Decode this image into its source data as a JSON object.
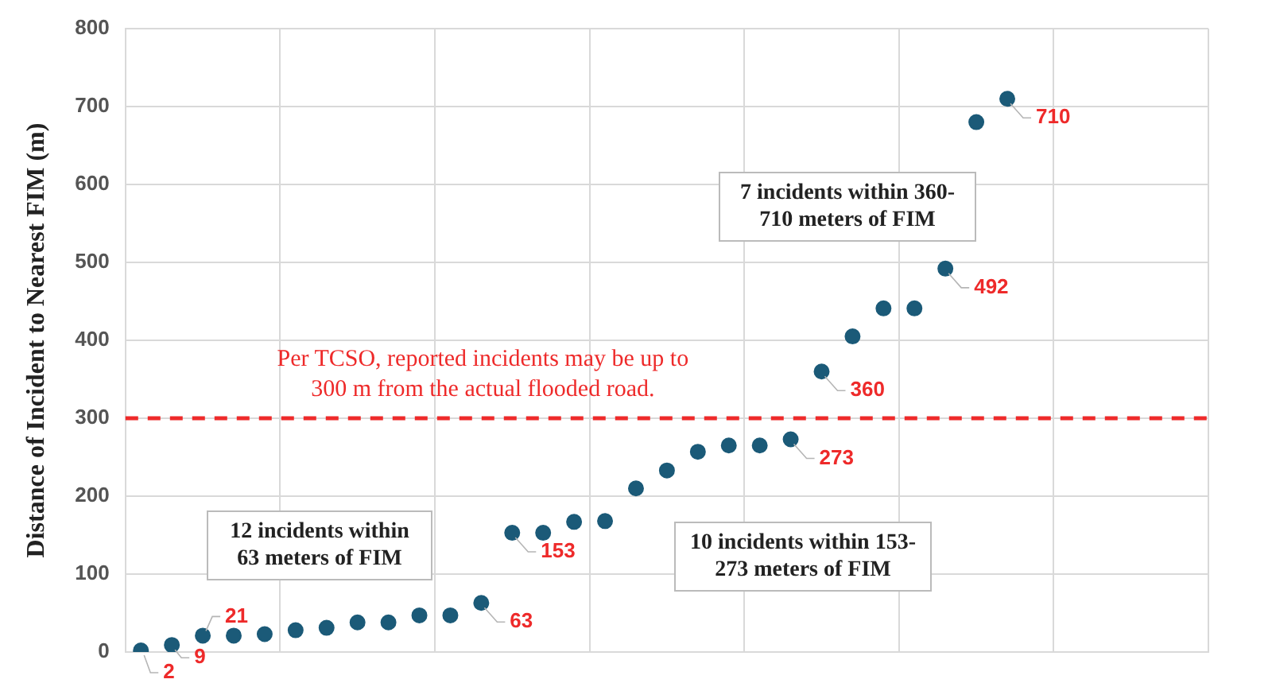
{
  "chart_data": {
    "type": "scatter",
    "ylabel": "Distance of Incident to Nearest FIM (m)",
    "categories": [
      null,
      null,
      null,
      null,
      null,
      null,
      null,
      null,
      null,
      null,
      null,
      null,
      null,
      null,
      null,
      null,
      null,
      null,
      null,
      null,
      null,
      null,
      null,
      null,
      null,
      null,
      null,
      null,
      null,
      null,
      null,
      null,
      null,
      null,
      null
    ],
    "series": [
      {
        "color": "#1b5a78",
        "values": [
          2,
          9,
          21,
          21,
          23,
          28,
          31,
          38,
          38,
          47,
          47,
          63,
          153,
          153,
          167,
          168,
          210,
          233,
          257,
          265,
          265,
          273,
          360,
          405,
          441,
          441,
          492,
          680,
          710,
          null,
          null,
          null,
          null,
          null,
          null
        ],
        "value_labels": [
          "2",
          "9",
          "21",
          null,
          null,
          null,
          null,
          null,
          null,
          null,
          null,
          "63",
          "153",
          null,
          null,
          null,
          null,
          null,
          null,
          null,
          null,
          "273",
          "360",
          null,
          null,
          null,
          "492",
          null,
          "710",
          null,
          null,
          null,
          null,
          null,
          null
        ]
      }
    ],
    "ylim": [
      0,
      800
    ],
    "yticks": [
      0,
      100,
      200,
      300,
      400,
      500,
      600,
      700,
      800
    ],
    "tick_labels": "y",
    "grid": true,
    "legend": false,
    "marker": "circle",
    "ref_lines": [
      {
        "axis": "y",
        "value": 300,
        "label": "Per TCSO, reported incidents may be up to 300 m from the actual flooded road.",
        "color": "#ee2a2a",
        "line_style": "dashed"
      }
    ],
    "annotations": [
      "12 incidents within 63 meters of FIM",
      "10 incidents within 153-273 meters of FIM",
      "7 incidents within 360-710 meters of FIM"
    ]
  }
}
